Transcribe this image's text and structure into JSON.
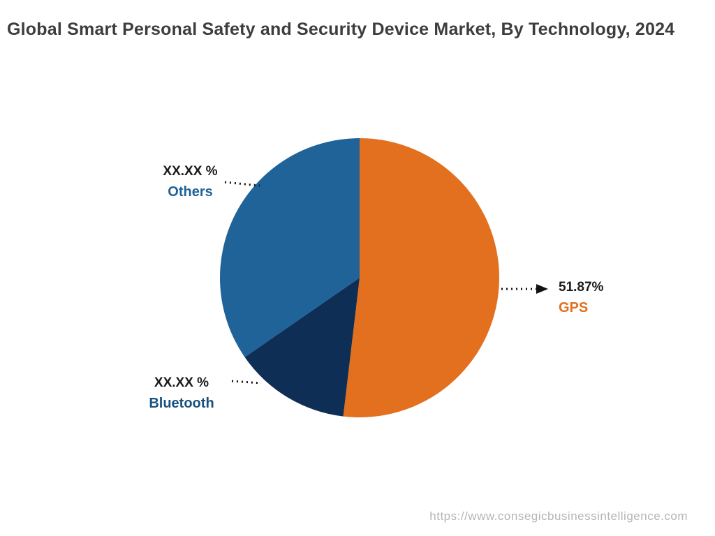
{
  "title": "Global Smart Personal Safety and Security Device Market, By Technology, 2024",
  "footer": {
    "url": "https://www.consegicbusinessintelligence.com"
  },
  "chart_data": {
    "type": "pie",
    "title": "Global Smart Personal Safety and Security Device Market, By Technology, 2024",
    "start_angle_deg": 0,
    "direction": "clockwise",
    "legend_position": "none",
    "slices": [
      {
        "name": "GPS",
        "value": 51.87,
        "display_value": "51.87%",
        "color": "#E2701F",
        "label_color": "#E2701F"
      },
      {
        "name": "Bluetooth",
        "value": 13.5,
        "display_value": "XX.XX %",
        "color": "#0E2E55",
        "label_color": "#17507E"
      },
      {
        "name": "Others",
        "value": 34.63,
        "display_value": "XX.XX %",
        "color": "#1F6399",
        "label_color": "#1F6399"
      }
    ]
  }
}
